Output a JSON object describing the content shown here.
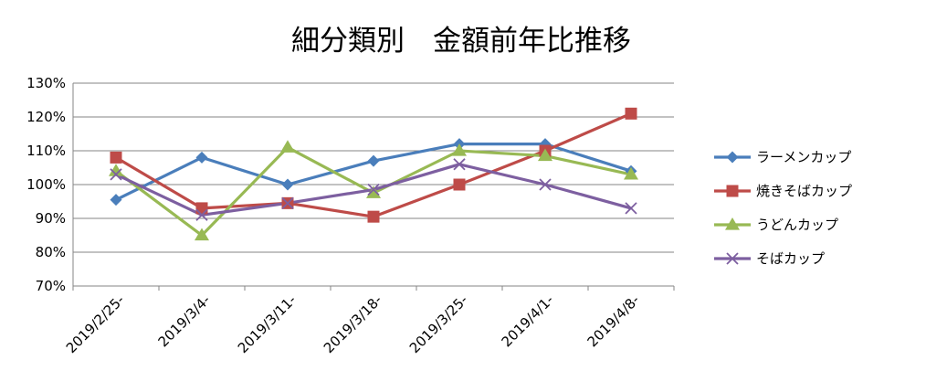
{
  "chart_data": {
    "type": "line",
    "title": "細分類別　金額前年比推移",
    "xlabel": "",
    "ylabel": "",
    "categories": [
      "2019/2/25-",
      "2019/3/4-",
      "2019/3/11-",
      "2019/3/18-",
      "2019/3/25-",
      "2019/4/1-",
      "2019/4/8-"
    ],
    "ylim": [
      70,
      130
    ],
    "y_ticks": [
      70,
      80,
      90,
      100,
      110,
      120,
      130
    ],
    "y_tick_labels": [
      "70%",
      "80%",
      "90%",
      "100%",
      "110%",
      "120%",
      "130%"
    ],
    "grid": true,
    "legend_position": "right",
    "series": [
      {
        "name": "ラーメンカップ",
        "marker": "diamond",
        "color": "#4a7ebb",
        "values": [
          95.5,
          108,
          100,
          107,
          112,
          112,
          104
        ]
      },
      {
        "name": "焼きそばカップ",
        "marker": "square",
        "color": "#be4b48",
        "values": [
          108,
          93,
          94.5,
          90.5,
          100,
          110,
          121
        ]
      },
      {
        "name": "うどんカップ",
        "marker": "triangle",
        "color": "#98b954",
        "values": [
          104,
          85,
          111,
          97.5,
          110,
          108.5,
          103
        ]
      },
      {
        "name": "そばカップ",
        "marker": "x",
        "color": "#7d5fa0",
        "values": [
          103,
          91,
          94.5,
          98.5,
          106,
          100,
          93
        ]
      }
    ]
  }
}
